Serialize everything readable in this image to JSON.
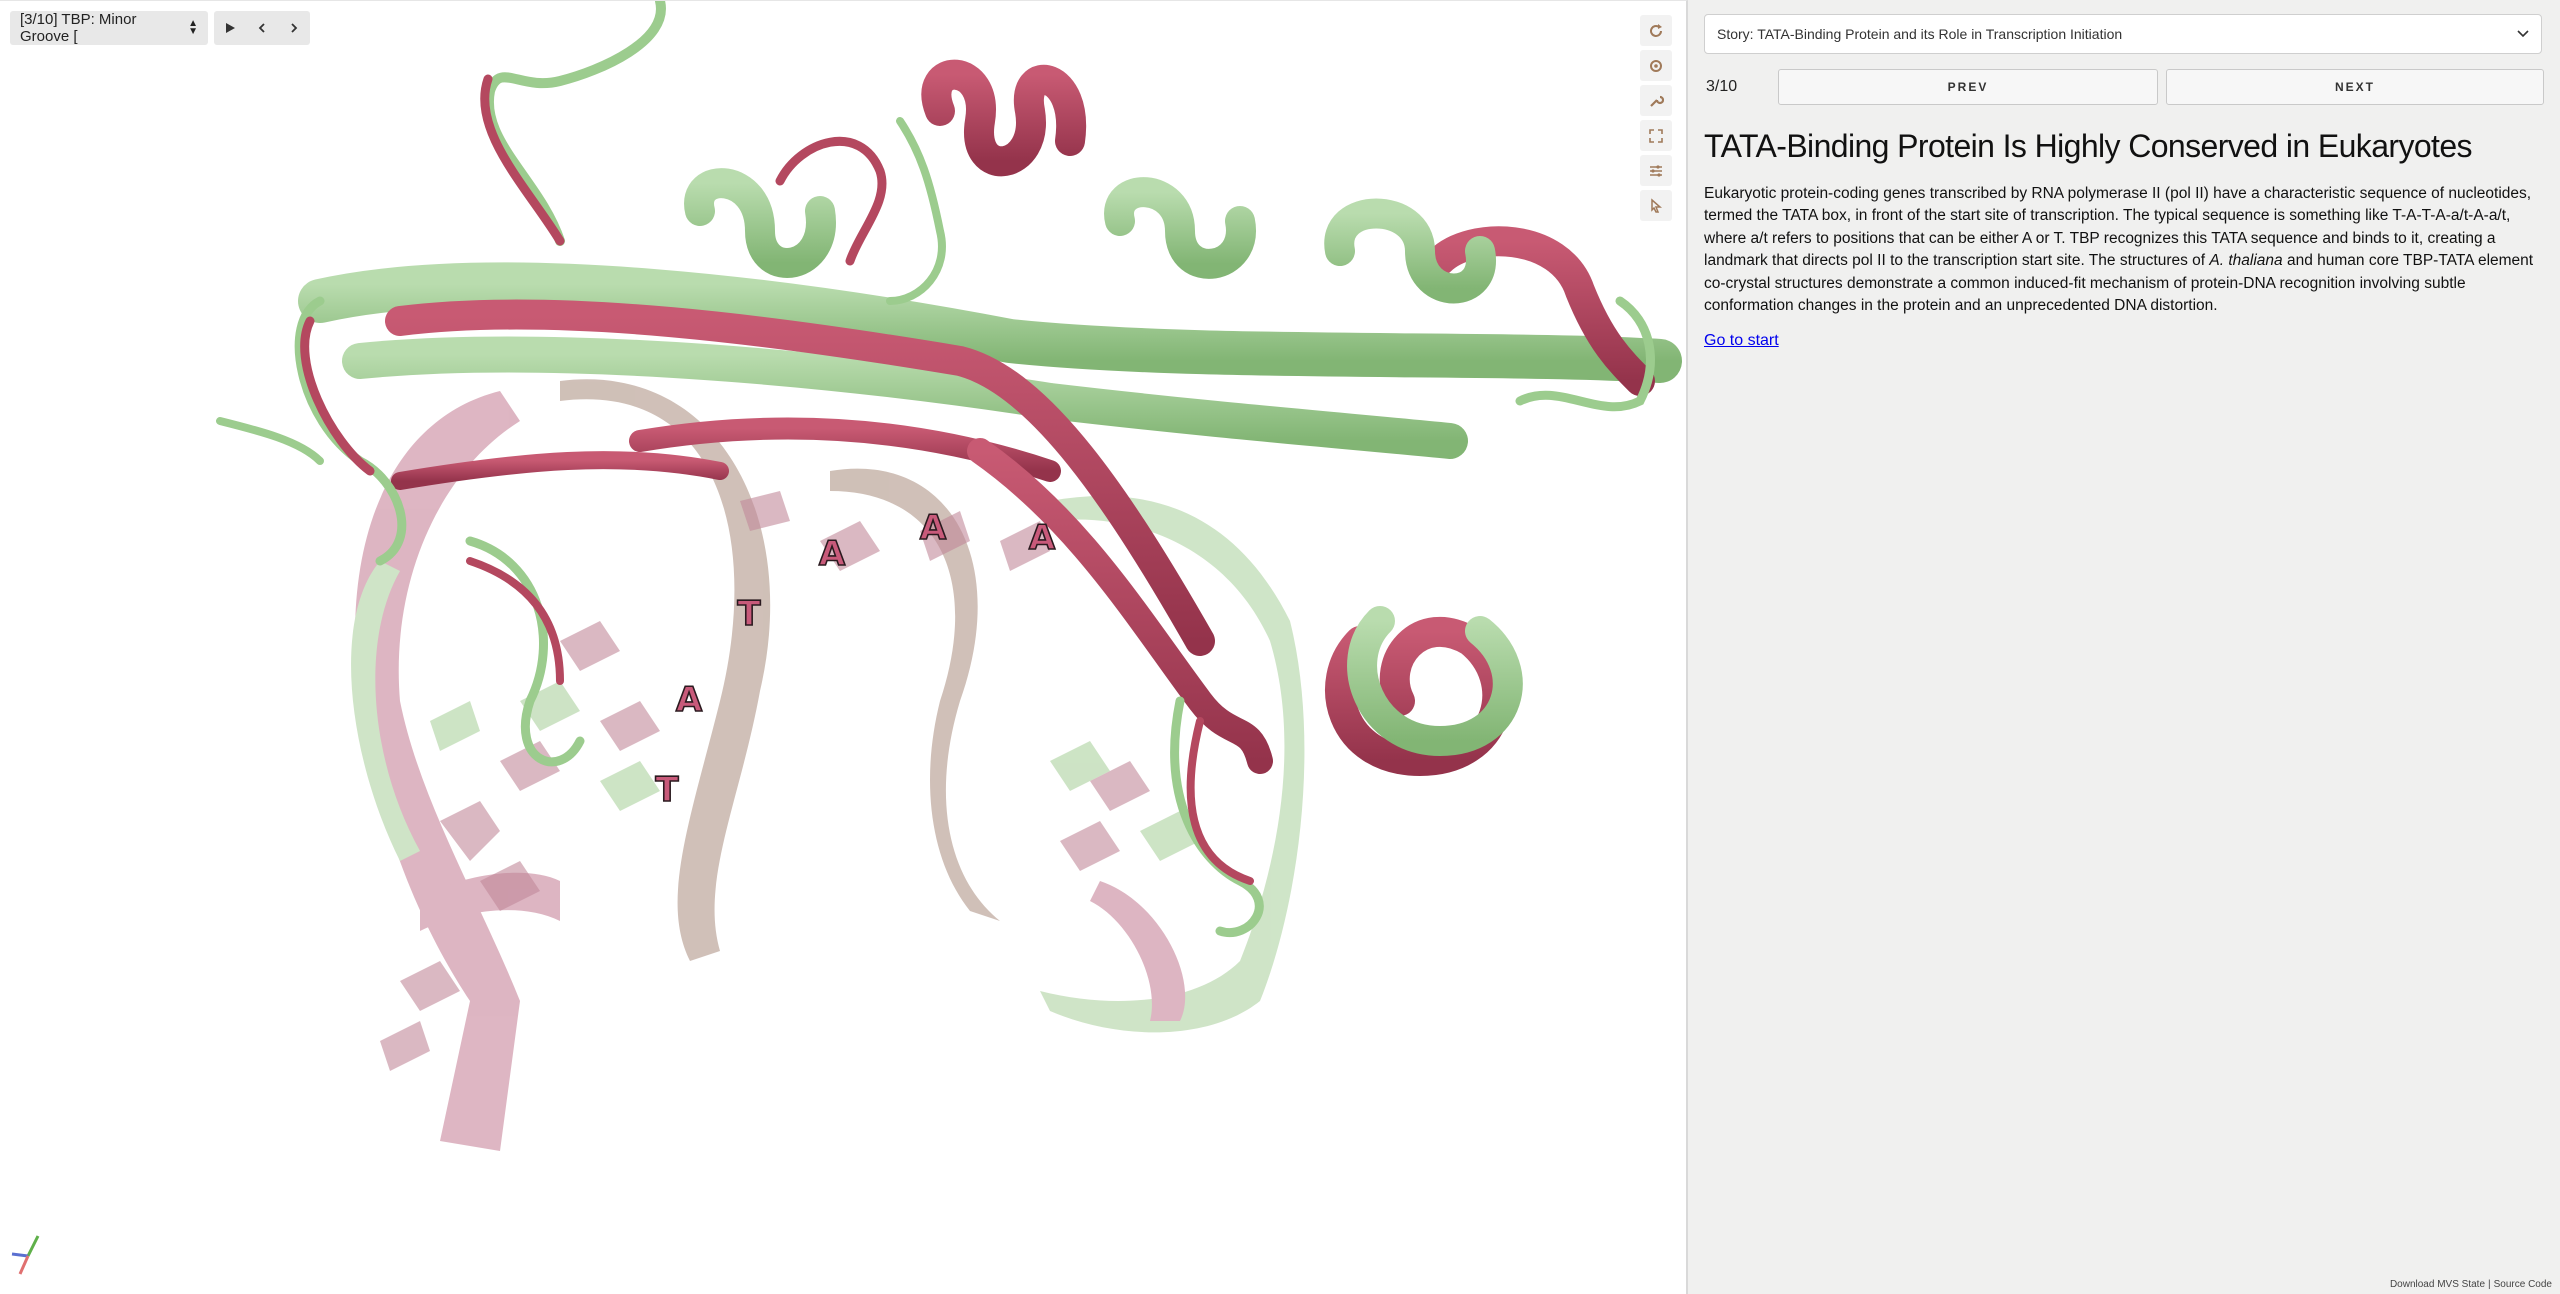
{
  "viewer": {
    "snapshot_select": "[3/10] TBP: Minor Groove [",
    "icons": {
      "play": "play-icon",
      "prev": "chevron-left-icon",
      "next": "chevron-right-icon"
    },
    "toolbar": [
      "reset-view-icon",
      "target-icon",
      "wrench-icon",
      "expand-icon",
      "sliders-icon",
      "pointer-icon"
    ],
    "base_labels": [
      "A",
      "T",
      "A",
      "A",
      "A",
      "T"
    ],
    "colors": {
      "protein_green": "#9ccc8e",
      "protein_red": "#b4485f",
      "dna_tan": "#bfa393"
    }
  },
  "panel": {
    "story_select": "Story: TATA-Binding Protein and its Role in Transcription Initiation",
    "counter": "3/10",
    "prev_label": "PREV",
    "next_label": "NEXT",
    "title": "TATA-Binding Protein Is Highly Conserved in Eukaryotes",
    "body_before_italic": "Eukaryotic protein-coding genes transcribed by RNA polymerase II (pol II) have a characteristic sequence of nucleotides, termed the TATA box, in front of the start site of transcription. The typical sequence is something like T-A-T-A-a/t-A-a/t, where a/t refers to positions that can be either A or T. TBP recognizes this TATA sequence and binds to it, creating a landmark that directs pol II to the transcription start site. The structures of ",
    "body_italic": "A. thaliana",
    "body_after_italic": " and human core TBP-TATA element co-crystal structures demonstrate a common induced-fit mechanism of protein-DNA recognition involving subtle conformation changes in the protein and an unprecedented DNA distortion.",
    "go_to_start": "Go to start",
    "footer_download": "Download MVS State",
    "footer_separator": "|",
    "footer_source": "Source Code"
  }
}
